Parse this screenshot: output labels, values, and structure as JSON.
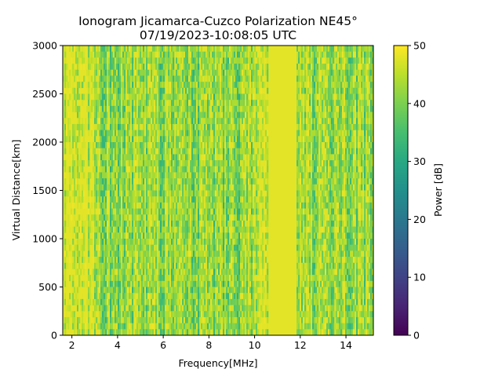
{
  "chart_data": {
    "type": "heatmap",
    "title": "Ionogram Jicamarca-Cuzco Polarization NE45°",
    "subtitle": "07/19/2023-10:08:05 UTC",
    "xlabel": "Frequency[MHz]",
    "ylabel": "Virtual Distance[km]",
    "xlim": [
      1.6,
      15.2
    ],
    "ylim": [
      0,
      3000
    ],
    "x_ticks": [
      2,
      4,
      6,
      8,
      10,
      12,
      14
    ],
    "y_ticks": [
      0,
      500,
      1000,
      1500,
      2000,
      2500,
      3000
    ],
    "colorbar": {
      "label": "Power [dB]",
      "range": [
        0,
        50
      ],
      "ticks": [
        0,
        10,
        20,
        30,
        40,
        50
      ],
      "colormap": "viridis"
    },
    "grid": false,
    "regions": [
      {
        "x_range": [
          1.6,
          3.0
        ],
        "typical_power_db": 48
      },
      {
        "x_range": [
          3.0,
          10.0
        ],
        "typical_power_db": 42
      },
      {
        "x_range": [
          10.0,
          10.6
        ],
        "typical_power_db": 46
      },
      {
        "x_range": [
          10.6,
          11.8
        ],
        "typical_power_db": 50
      },
      {
        "x_range": [
          11.8,
          15.2
        ],
        "typical_power_db": 43
      }
    ]
  }
}
